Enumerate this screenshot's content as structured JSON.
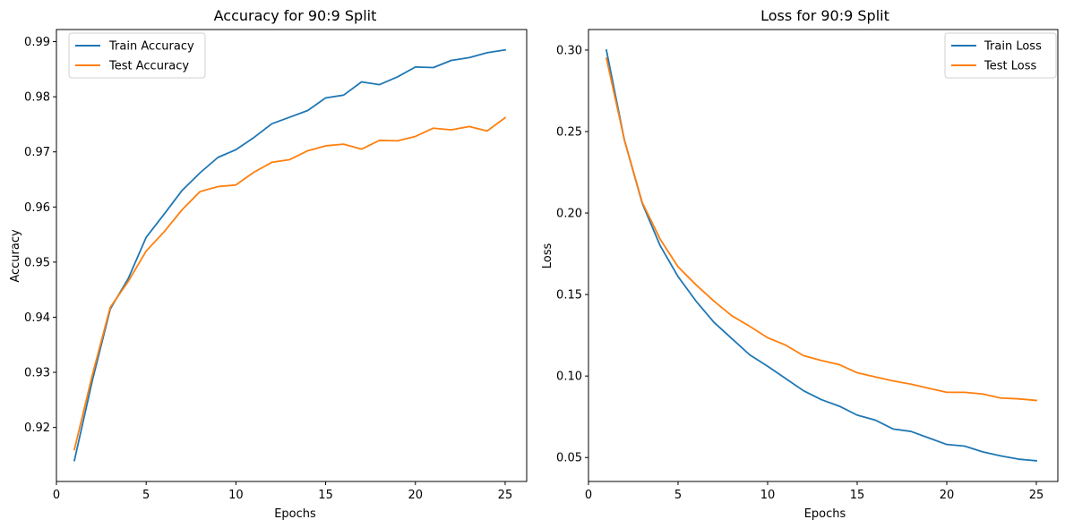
{
  "chart_data": [
    {
      "type": "line",
      "title": "Accuracy for 90:9 Split",
      "xlabel": "Epochs",
      "ylabel": "Accuracy",
      "xlim": [
        0,
        26.2
      ],
      "ylim": [
        0.9102,
        0.9922
      ],
      "xticks": [
        0,
        5,
        10,
        15,
        20,
        25
      ],
      "xtick_labels": [
        "0",
        "5",
        "10",
        "15",
        "20",
        "25"
      ],
      "yticks": [
        0.92,
        0.93,
        0.94,
        0.95,
        0.96,
        0.97,
        0.98,
        0.99
      ],
      "ytick_labels": [
        "0.92",
        "0.93",
        "0.94",
        "0.95",
        "0.96",
        "0.97",
        "0.98",
        "0.99"
      ],
      "legend_position": "upper-left",
      "x": [
        1,
        2,
        3,
        4,
        5,
        6,
        7,
        8,
        9,
        10,
        11,
        12,
        13,
        14,
        15,
        16,
        17,
        18,
        19,
        20,
        21,
        22,
        23,
        24,
        25
      ],
      "series": [
        {
          "name": "Train Accuracy",
          "color": "#1f77b4",
          "values": [
            0.914,
            0.9285,
            0.9415,
            0.947,
            0.9545,
            0.9587,
            0.963,
            0.9662,
            0.969,
            0.9704,
            0.9726,
            0.9751,
            0.9763,
            0.9775,
            0.9798,
            0.9803,
            0.9827,
            0.9822,
            0.9836,
            0.9854,
            0.9853,
            0.9866,
            0.9871,
            0.988,
            0.9885
          ]
        },
        {
          "name": "Test Accuracy",
          "color": "#ff7f0e",
          "values": [
            0.916,
            0.9295,
            0.9418,
            0.9465,
            0.952,
            0.9555,
            0.9595,
            0.9628,
            0.9637,
            0.964,
            0.9663,
            0.9681,
            0.9686,
            0.9702,
            0.9711,
            0.9714,
            0.9705,
            0.9721,
            0.972,
            0.9728,
            0.9743,
            0.974,
            0.9746,
            0.9738,
            0.9762
          ]
        }
      ]
    },
    {
      "type": "line",
      "title": "Loss for 90:9 Split",
      "xlabel": "Epochs",
      "ylabel": "Loss",
      "xlim": [
        0,
        26.2
      ],
      "ylim": [
        0.0353,
        0.3126
      ],
      "xticks": [
        0,
        5,
        10,
        15,
        20,
        25
      ],
      "xtick_labels": [
        "0",
        "5",
        "10",
        "15",
        "20",
        "25"
      ],
      "yticks": [
        0.05,
        0.1,
        0.15,
        0.2,
        0.25,
        0.3
      ],
      "ytick_labels": [
        "0.05",
        "0.10",
        "0.15",
        "0.20",
        "0.25",
        "0.30"
      ],
      "legend_position": "upper-right",
      "x": [
        1,
        2,
        3,
        4,
        5,
        6,
        7,
        8,
        9,
        10,
        11,
        12,
        13,
        14,
        15,
        16,
        17,
        18,
        19,
        20,
        21,
        22,
        23,
        24,
        25
      ],
      "series": [
        {
          "name": "Train Loss",
          "color": "#1f77b4",
          "values": [
            0.3,
            0.245,
            0.206,
            0.18,
            0.161,
            0.146,
            0.133,
            0.123,
            0.113,
            0.106,
            0.0985,
            0.091,
            0.0855,
            0.0815,
            0.076,
            0.073,
            0.0675,
            0.066,
            0.062,
            0.058,
            0.057,
            0.0535,
            0.051,
            0.049,
            0.048
          ]
        },
        {
          "name": "Test Loss",
          "color": "#ff7f0e",
          "values": [
            0.295,
            0.245,
            0.2065,
            0.184,
            0.167,
            0.156,
            0.146,
            0.137,
            0.1305,
            0.1235,
            0.119,
            0.1125,
            0.1095,
            0.107,
            0.102,
            0.0995,
            0.097,
            0.095,
            0.0925,
            0.09,
            0.09,
            0.089,
            0.0865,
            0.086,
            0.085
          ]
        }
      ]
    }
  ]
}
